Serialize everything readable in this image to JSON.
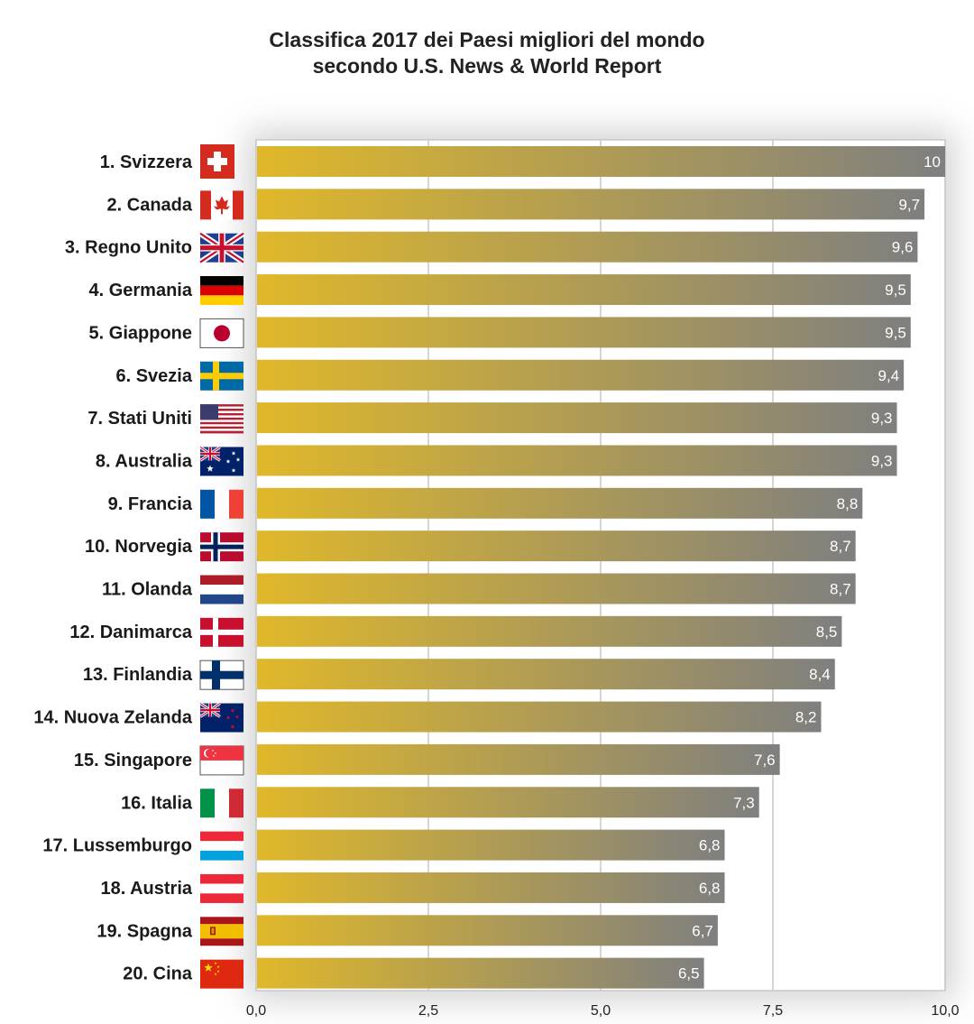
{
  "chart_data": {
    "type": "bar",
    "orientation": "horizontal",
    "title": "Classifica 2017 dei Paesi migliori del mondo",
    "subtitle": "secondo U.S. News & World Report",
    "xlabel": "",
    "ylabel": "",
    "xlim": [
      0,
      10
    ],
    "x_ticks": [
      {
        "value": 0,
        "label": "0,0"
      },
      {
        "value": 2.5,
        "label": "2,5"
      },
      {
        "value": 5,
        "label": "5,0"
      },
      {
        "value": 7.5,
        "label": "7,5"
      },
      {
        "value": 10,
        "label": "10,0"
      }
    ],
    "grid": true,
    "categories": [
      {
        "label": "1. Svizzera",
        "flag": "switzerland-flag-icon"
      },
      {
        "label": "2. Canada",
        "flag": "canada-flag-icon"
      },
      {
        "label": "3. Regno Unito",
        "flag": "united-kingdom-flag-icon"
      },
      {
        "label": "4. Germania",
        "flag": "germany-flag-icon"
      },
      {
        "label": "5. Giappone",
        "flag": "japan-flag-icon"
      },
      {
        "label": "6. Svezia",
        "flag": "sweden-flag-icon"
      },
      {
        "label": "7. Stati Uniti",
        "flag": "united-states-flag-icon"
      },
      {
        "label": "8. Australia",
        "flag": "australia-flag-icon"
      },
      {
        "label": "9. Francia",
        "flag": "france-flag-icon"
      },
      {
        "label": "10. Norvegia",
        "flag": "norway-flag-icon"
      },
      {
        "label": "11. Olanda",
        "flag": "netherlands-flag-icon"
      },
      {
        "label": "12. Danimarca",
        "flag": "denmark-flag-icon"
      },
      {
        "label": "13. Finlandia",
        "flag": "finland-flag-icon"
      },
      {
        "label": "14. Nuova Zelanda",
        "flag": "new-zealand-flag-icon"
      },
      {
        "label": "15. Singapore",
        "flag": "singapore-flag-icon"
      },
      {
        "label": "16. Italia",
        "flag": "italy-flag-icon"
      },
      {
        "label": "17. Lussemburgo",
        "flag": "luxembourg-flag-icon"
      },
      {
        "label": "18. Austria",
        "flag": "austria-flag-icon"
      },
      {
        "label": "19. Spagna",
        "flag": "spain-flag-icon"
      },
      {
        "label": "20. Cina",
        "flag": "china-flag-icon"
      }
    ],
    "values": [
      10,
      9.7,
      9.6,
      9.5,
      9.5,
      9.4,
      9.3,
      9.3,
      8.8,
      8.7,
      8.7,
      8.5,
      8.4,
      8.2,
      7.6,
      7.3,
      6.8,
      6.8,
      6.7,
      6.5
    ],
    "value_labels": [
      "10",
      "9,7",
      "9,6",
      "9,5",
      "9,5",
      "9,4",
      "9,3",
      "9,3",
      "8,8",
      "8,7",
      "8,7",
      "8,5",
      "8,4",
      "8,2",
      "7,6",
      "7,3",
      "6,8",
      "6,8",
      "6,7",
      "6,5"
    ],
    "colors": {
      "bar_start": "#e0b82a",
      "bar_end": "#7f7f7f",
      "grid": "#c9c9c9",
      "value_label": "#ffffff"
    }
  }
}
